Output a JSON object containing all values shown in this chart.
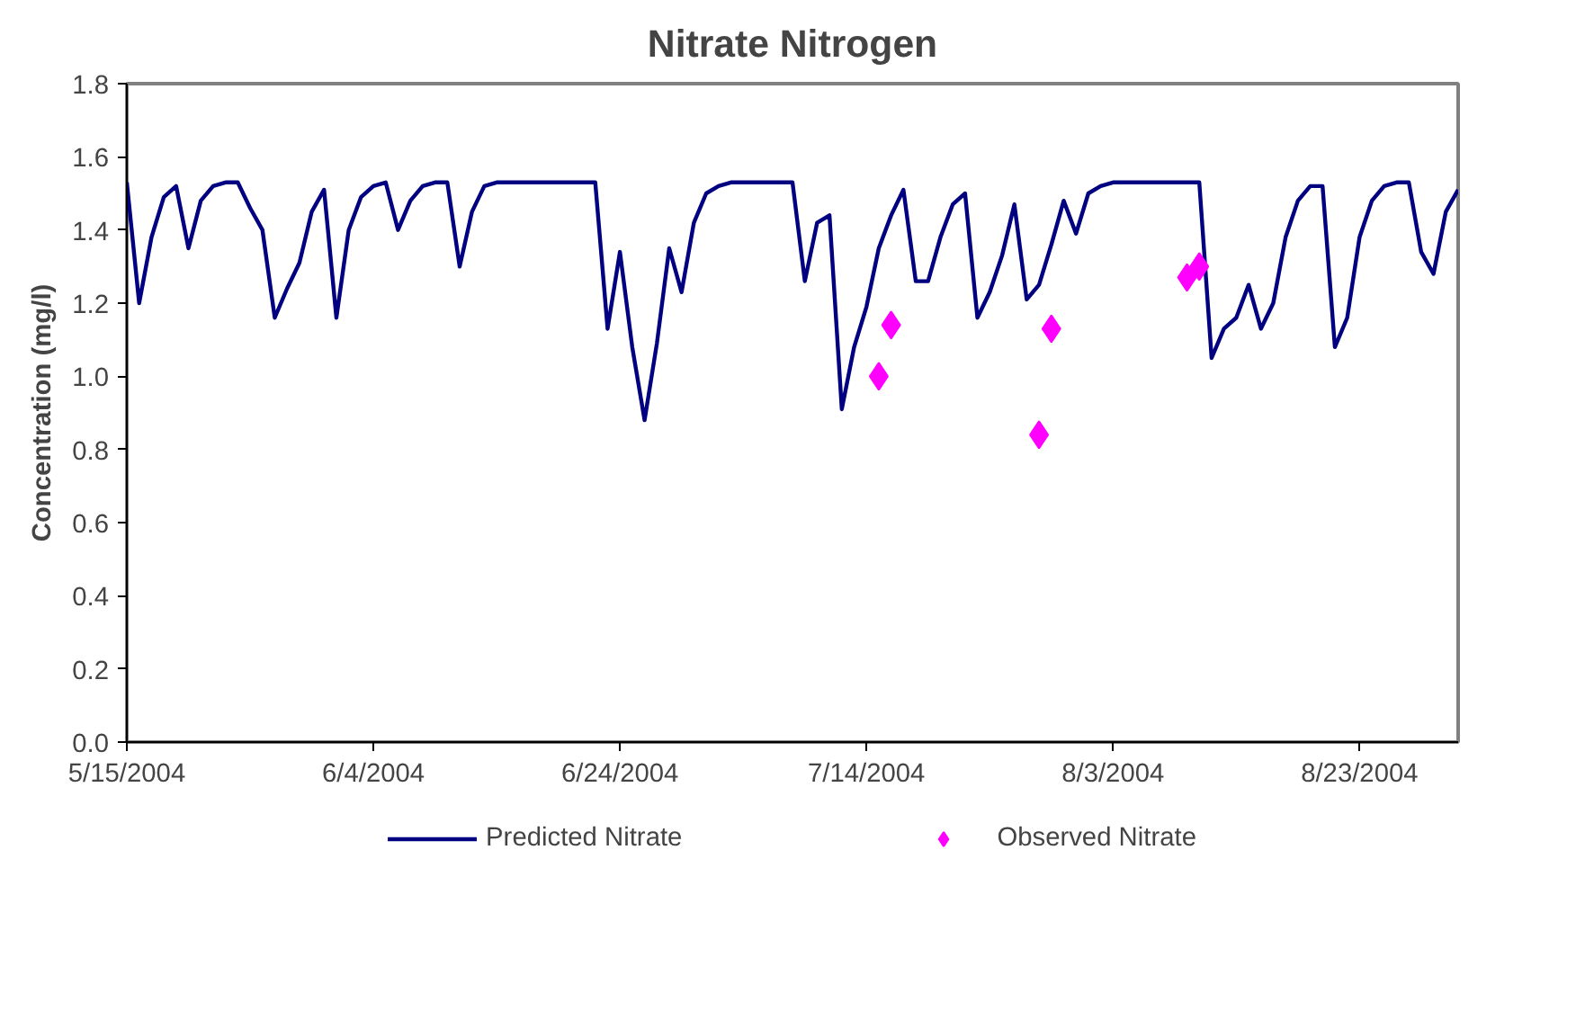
{
  "chart_data": {
    "type": "line",
    "title": "Nitrate Nitrogen",
    "ylabel": "Concentration (mg/l)",
    "xlim": [
      "2004-05-15",
      "2004-08-31"
    ],
    "xticks": [
      {
        "value": "2004-05-15",
        "label": "5/15/2004"
      },
      {
        "value": "2004-06-04",
        "label": "6/4/2004"
      },
      {
        "value": "2004-06-24",
        "label": "6/24/2004"
      },
      {
        "value": "2004-07-14",
        "label": "7/14/2004"
      },
      {
        "value": "2004-08-03",
        "label": "8/3/2004"
      },
      {
        "value": "2004-08-23",
        "label": "8/23/2004"
      }
    ],
    "ylim": [
      0,
      1.8
    ],
    "yticks": [
      {
        "value": 0,
        "label": "0.0"
      },
      {
        "value": 0.2,
        "label": "0.2"
      },
      {
        "value": 0.4,
        "label": "0.4"
      },
      {
        "value": 0.6,
        "label": "0.6"
      },
      {
        "value": 0.8,
        "label": "0.8"
      },
      {
        "value": 1.0,
        "label": "1.0"
      },
      {
        "value": 1.2,
        "label": "1.2"
      },
      {
        "value": 1.4,
        "label": "1.4"
      },
      {
        "value": 1.6,
        "label": "1.6"
      },
      {
        "value": 1.8,
        "label": "1.8"
      }
    ],
    "grid": false,
    "legend": "bottom",
    "series": [
      {
        "name": "Predicted Nitrate",
        "type": "line",
        "color": "#000080",
        "marker": "none",
        "x": [
          "2004-05-15",
          "2004-05-16",
          "2004-05-17",
          "2004-05-18",
          "2004-05-19",
          "2004-05-20",
          "2004-05-21",
          "2004-05-22",
          "2004-05-23",
          "2004-05-24",
          "2004-05-25",
          "2004-05-26",
          "2004-05-27",
          "2004-05-28",
          "2004-05-29",
          "2004-05-30",
          "2004-05-31",
          "2004-06-01",
          "2004-06-02",
          "2004-06-03",
          "2004-06-04",
          "2004-06-05",
          "2004-06-06",
          "2004-06-07",
          "2004-06-08",
          "2004-06-09",
          "2004-06-10",
          "2004-06-11",
          "2004-06-12",
          "2004-06-13",
          "2004-06-14",
          "2004-06-15",
          "2004-06-16",
          "2004-06-17",
          "2004-06-18",
          "2004-06-19",
          "2004-06-20",
          "2004-06-21",
          "2004-06-22",
          "2004-06-23",
          "2004-06-24",
          "2004-06-25",
          "2004-06-26",
          "2004-06-27",
          "2004-06-28",
          "2004-06-29",
          "2004-06-30",
          "2004-07-01",
          "2004-07-02",
          "2004-07-03",
          "2004-07-04",
          "2004-07-05",
          "2004-07-06",
          "2004-07-07",
          "2004-07-08",
          "2004-07-09",
          "2004-07-10",
          "2004-07-11",
          "2004-07-12",
          "2004-07-13",
          "2004-07-14",
          "2004-07-15",
          "2004-07-16",
          "2004-07-17",
          "2004-07-18",
          "2004-07-19",
          "2004-07-20",
          "2004-07-21",
          "2004-07-22",
          "2004-07-23",
          "2004-07-24",
          "2004-07-25",
          "2004-07-26",
          "2004-07-27",
          "2004-07-28",
          "2004-07-29",
          "2004-07-30",
          "2004-07-31",
          "2004-08-01",
          "2004-08-02",
          "2004-08-03",
          "2004-08-04",
          "2004-08-05",
          "2004-08-06",
          "2004-08-07",
          "2004-08-08",
          "2004-08-09",
          "2004-08-10",
          "2004-08-11",
          "2004-08-12",
          "2004-08-13",
          "2004-08-14",
          "2004-08-15",
          "2004-08-16",
          "2004-08-17",
          "2004-08-18",
          "2004-08-19",
          "2004-08-20",
          "2004-08-21",
          "2004-08-22",
          "2004-08-23",
          "2004-08-24",
          "2004-08-25",
          "2004-08-26",
          "2004-08-27",
          "2004-08-28",
          "2004-08-29",
          "2004-08-30",
          "2004-08-31"
        ],
        "values": [
          1.53,
          1.2,
          1.38,
          1.49,
          1.52,
          1.35,
          1.48,
          1.52,
          1.53,
          1.53,
          1.46,
          1.4,
          1.16,
          1.24,
          1.31,
          1.45,
          1.51,
          1.16,
          1.4,
          1.49,
          1.52,
          1.53,
          1.4,
          1.48,
          1.52,
          1.53,
          1.53,
          1.3,
          1.45,
          1.52,
          1.53,
          1.53,
          1.53,
          1.53,
          1.53,
          1.53,
          1.53,
          1.53,
          1.53,
          1.13,
          1.34,
          1.08,
          0.88,
          1.09,
          1.35,
          1.23,
          1.42,
          1.5,
          1.52,
          1.53,
          1.53,
          1.53,
          1.53,
          1.53,
          1.53,
          1.26,
          1.42,
          1.44,
          0.91,
          1.08,
          1.19,
          1.35,
          1.44,
          1.51,
          1.26,
          1.26,
          1.38,
          1.47,
          1.5,
          1.16,
          1.23,
          1.33,
          1.47,
          1.21,
          1.25,
          1.36,
          1.48,
          1.39,
          1.5,
          1.52,
          1.53,
          1.53,
          1.53,
          1.53,
          1.53,
          1.53,
          1.53,
          1.53,
          1.05,
          1.13,
          1.16,
          1.25,
          1.13,
          1.2,
          1.38,
          1.48,
          1.52,
          1.52,
          1.08,
          1.16,
          1.38,
          1.48,
          1.52,
          1.53,
          1.53,
          1.34,
          1.28,
          1.45,
          1.51
        ]
      },
      {
        "name": "Observed Nitrate",
        "type": "scatter",
        "color": "#ff00ff",
        "marker": "diamond",
        "x": [
          "2004-07-15",
          "2004-07-16",
          "2004-07-28",
          "2004-07-29",
          "2004-08-09",
          "2004-08-10"
        ],
        "values": [
          1.0,
          1.14,
          0.84,
          1.13,
          1.27,
          1.3
        ]
      }
    ]
  }
}
